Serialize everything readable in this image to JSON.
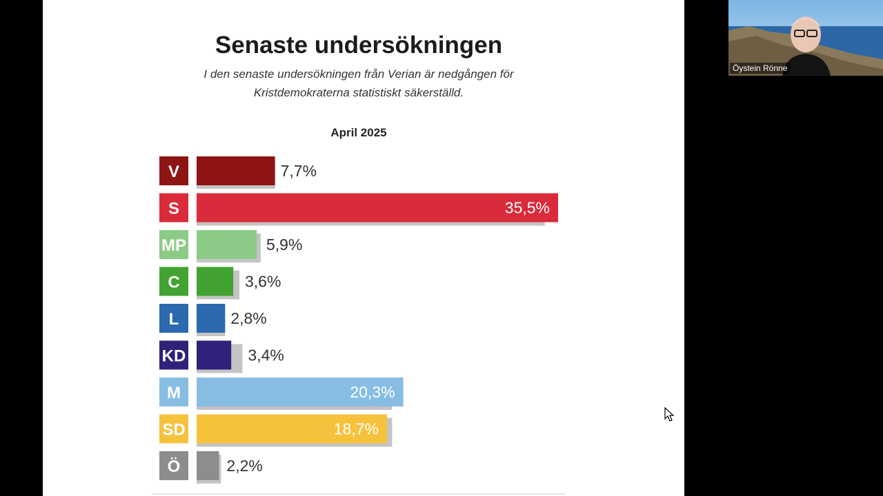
{
  "chart_data": {
    "type": "bar",
    "orientation": "horizontal",
    "title": "Senaste undersökningen",
    "subtitle_lines": [
      "I den senaste undersökningen från Verian är nedgången för",
      "Kristdemokraterna statistiskt säkerställd."
    ],
    "period": "April 2025",
    "xlim": [
      0,
      35.5
    ],
    "categories": [
      "V",
      "S",
      "MP",
      "C",
      "L",
      "KD",
      "M",
      "SD",
      "Ö"
    ],
    "values": [
      7.7,
      35.5,
      5.9,
      3.6,
      2.8,
      3.4,
      20.3,
      18.7,
      2.2
    ],
    "value_labels": [
      "7,7%",
      "35,5%",
      "5,9%",
      "3,6%",
      "2,8%",
      "3,4%",
      "20,3%",
      "18,7%",
      "2,2%"
    ],
    "previous_values": [
      7.7,
      34.2,
      6.3,
      4.2,
      2.8,
      4.5,
      19.2,
      19.2,
      2.4
    ],
    "colors": [
      "#8f1515",
      "#d92b3a",
      "#8ccb85",
      "#43a332",
      "#2c69ae",
      "#31217a",
      "#88bde3",
      "#f6c23c",
      "#8d8d8d"
    ],
    "previous_color": "#c4c4c4"
  },
  "video": {
    "participant_name": "Öystein Rönne"
  }
}
